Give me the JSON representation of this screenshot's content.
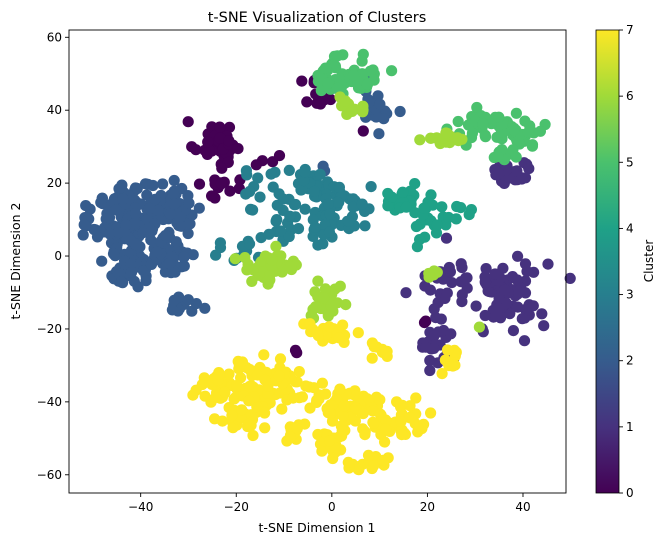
{
  "chart_data": {
    "type": "scatter",
    "title": "t-SNE Visualization of Clusters",
    "xlabel": "t-SNE Dimension 1",
    "ylabel": "t-SNE Dimension 2",
    "xlim": [
      -55,
      49
    ],
    "ylim": [
      -65,
      62
    ],
    "xticks": [
      -40,
      -20,
      0,
      20,
      40
    ],
    "yticks": [
      -60,
      -40,
      -20,
      0,
      20,
      40,
      60
    ],
    "grid": false,
    "colormap": "viridis",
    "colorbar": {
      "label": "Cluster",
      "range": [
        0,
        7
      ],
      "ticks": [
        0,
        1,
        2,
        3,
        4,
        5,
        6,
        7
      ]
    },
    "clusters": [
      {
        "label": 0,
        "color": "#440154",
        "blobs": [
          {
            "x": -24,
            "y": 31,
            "sx": 2.5,
            "sy": 3,
            "n": 40
          },
          {
            "x": -3,
            "y": 46,
            "sx": 1.5,
            "sy": 3,
            "n": 14
          },
          {
            "x": -23,
            "y": 19,
            "sx": 2,
            "sy": 2,
            "n": 14
          },
          {
            "x": -14,
            "y": 25,
            "sx": 1.5,
            "sy": 1.5,
            "n": 4
          },
          {
            "x": 20,
            "y": -18,
            "sx": 0.5,
            "sy": 0.5,
            "n": 2
          },
          {
            "x": -8,
            "y": -26,
            "sx": 0.5,
            "sy": 0.5,
            "n": 2
          },
          {
            "x": 6,
            "y": 35,
            "sx": 0.5,
            "sy": 0.5,
            "n": 1
          }
        ]
      },
      {
        "label": 1,
        "color": "#46327e",
        "blobs": [
          {
            "x": 37,
            "y": -10,
            "sx": 4,
            "sy": 5,
            "n": 70
          },
          {
            "x": 24,
            "y": -8,
            "sx": 3,
            "sy": 5,
            "n": 25
          },
          {
            "x": 37,
            "y": 23,
            "sx": 2.5,
            "sy": 2,
            "n": 25
          },
          {
            "x": 22,
            "y": -25,
            "sx": 2,
            "sy": 3,
            "n": 22
          },
          {
            "x": 32,
            "y": -20,
            "sx": 0.5,
            "sy": 0.5,
            "n": 2
          }
        ]
      },
      {
        "label": 2,
        "color": "#365c8d",
        "blobs": [
          {
            "x": -43,
            "y": 10,
            "sx": 3.5,
            "sy": 5,
            "n": 120
          },
          {
            "x": -42,
            "y": -2,
            "sx": 2.5,
            "sy": 3,
            "n": 45
          },
          {
            "x": -33,
            "y": 13,
            "sx": 3,
            "sy": 3.5,
            "n": 60
          },
          {
            "x": -34,
            "y": 1,
            "sx": 3,
            "sy": 3,
            "n": 50
          },
          {
            "x": -31,
            "y": -13,
            "sx": 1.5,
            "sy": 1.5,
            "n": 14
          },
          {
            "x": 9,
            "y": 40,
            "sx": 2,
            "sy": 3,
            "n": 20
          },
          {
            "x": -2,
            "y": 24,
            "sx": 0.5,
            "sy": 0.5,
            "n": 2
          }
        ]
      },
      {
        "label": 3,
        "color": "#277f8e",
        "blobs": [
          {
            "x": -5,
            "y": 19,
            "sx": 2.5,
            "sy": 3,
            "n": 28
          },
          {
            "x": 1,
            "y": 17,
            "sx": 2.5,
            "sy": 2,
            "n": 22
          },
          {
            "x": -1,
            "y": 9,
            "sx": 2.5,
            "sy": 3,
            "n": 25
          },
          {
            "x": -14,
            "y": 17,
            "sx": 3,
            "sy": 4,
            "n": 22
          },
          {
            "x": 6,
            "y": 12,
            "sx": 2,
            "sy": 2,
            "n": 12
          },
          {
            "x": -19,
            "y": 0,
            "sx": 3,
            "sy": 2,
            "n": 12
          },
          {
            "x": -10,
            "y": 5,
            "sx": 2,
            "sy": 2,
            "n": 8
          }
        ]
      },
      {
        "label": 4,
        "color": "#1fa187",
        "blobs": [
          {
            "x": 15,
            "y": 16,
            "sx": 2,
            "sy": 2.5,
            "n": 25
          },
          {
            "x": 21,
            "y": 10,
            "sx": 2,
            "sy": 3,
            "n": 22
          },
          {
            "x": 27,
            "y": 12,
            "sx": 1,
            "sy": 1,
            "n": 5
          }
        ]
      },
      {
        "label": 5,
        "color": "#4ac16d",
        "blobs": [
          {
            "x": 4,
            "y": 50,
            "sx": 3,
            "sy": 3,
            "n": 50
          },
          {
            "x": -1,
            "y": 48,
            "sx": 2,
            "sy": 2,
            "n": 12
          },
          {
            "x": 39,
            "y": 34,
            "sx": 2.5,
            "sy": 2,
            "n": 35
          },
          {
            "x": 31,
            "y": 36,
            "sx": 3,
            "sy": 2,
            "n": 30
          },
          {
            "x": 37,
            "y": 28,
            "sx": 2,
            "sy": 1,
            "n": 10
          }
        ]
      },
      {
        "label": 6,
        "color": "#a0da39",
        "blobs": [
          {
            "x": -13,
            "y": -3,
            "sx": 3.5,
            "sy": 2,
            "n": 50
          },
          {
            "x": -1,
            "y": -13,
            "sx": 1.5,
            "sy": 2.5,
            "n": 30
          },
          {
            "x": 23,
            "y": 32,
            "sx": 2.5,
            "sy": 1,
            "n": 18
          },
          {
            "x": 21,
            "y": -5,
            "sx": 1,
            "sy": 0.7,
            "n": 5
          },
          {
            "x": 5,
            "y": 40,
            "sx": 1,
            "sy": 1,
            "n": 5
          },
          {
            "x": 3,
            "y": 42,
            "sx": 1.5,
            "sy": 1.5,
            "n": 6
          },
          {
            "x": 31,
            "y": -20,
            "sx": 0.3,
            "sy": 0.3,
            "n": 1
          }
        ]
      },
      {
        "label": 7,
        "color": "#fde725",
        "blobs": [
          {
            "x": -22,
            "y": -36,
            "sx": 3.5,
            "sy": 3,
            "n": 60
          },
          {
            "x": -11,
            "y": -36,
            "sx": 4,
            "sy": 4,
            "n": 60
          },
          {
            "x": -19,
            "y": -44,
            "sx": 2.5,
            "sy": 2.5,
            "n": 25
          },
          {
            "x": 3,
            "y": -41,
            "sx": 3.5,
            "sy": 3,
            "n": 60
          },
          {
            "x": 14,
            "y": -45,
            "sx": 3.5,
            "sy": 2.5,
            "n": 45
          },
          {
            "x": 0,
            "y": -51,
            "sx": 1.5,
            "sy": 3,
            "n": 25
          },
          {
            "x": 8,
            "y": -57,
            "sx": 2.5,
            "sy": 1,
            "n": 20
          },
          {
            "x": -1,
            "y": -21,
            "sx": 2.5,
            "sy": 1.5,
            "n": 30
          },
          {
            "x": 11,
            "y": -26,
            "sx": 1.5,
            "sy": 1,
            "n": 10
          },
          {
            "x": -8,
            "y": -49,
            "sx": 1,
            "sy": 1.5,
            "n": 8
          },
          {
            "x": 25,
            "y": -29,
            "sx": 1,
            "sy": 2,
            "n": 10
          }
        ]
      }
    ]
  }
}
